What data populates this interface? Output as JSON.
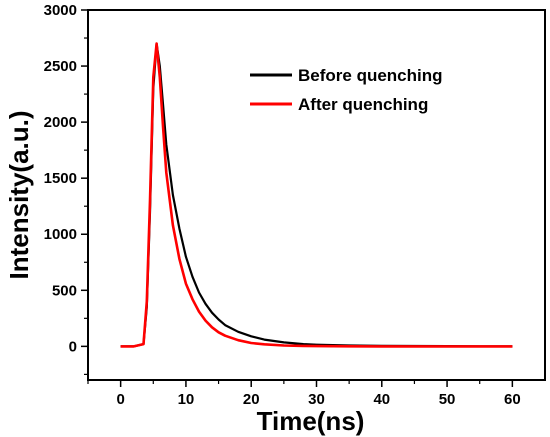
{
  "chart_data": {
    "type": "line",
    "title": "",
    "xlabel": "Time(ns)",
    "ylabel": "Intensity(a.u.)",
    "xlim": [
      -5,
      65
    ],
    "ylim": [
      -300,
      3000
    ],
    "xticks": [
      "0",
      "10",
      "20",
      "30",
      "40",
      "50",
      "60"
    ],
    "yticks": [
      "0",
      "500",
      "1000",
      "1500",
      "2000",
      "2500",
      "3000"
    ],
    "legend_position": "top-right",
    "grid": false,
    "series": [
      {
        "name": "Before quenching",
        "color": "#000000",
        "x": [
          0,
          2,
          3.5,
          4.0,
          4.5,
          5.0,
          5.5,
          6.0,
          6.5,
          7,
          8,
          9,
          10,
          11,
          12,
          13,
          14,
          15,
          16,
          18,
          20,
          22,
          25,
          28,
          30,
          35,
          40,
          45,
          50,
          55,
          60
        ],
        "values": [
          0,
          0,
          20,
          350,
          1200,
          2300,
          2700,
          2500,
          2150,
          1800,
          1350,
          1050,
          800,
          620,
          480,
          380,
          300,
          240,
          190,
          130,
          90,
          60,
          35,
          20,
          15,
          8,
          5,
          3,
          2,
          1,
          0
        ]
      },
      {
        "name": "After quenching",
        "color": "#ff0000",
        "x": [
          0,
          2,
          3.5,
          4.0,
          4.5,
          5.0,
          5.5,
          6.0,
          6.5,
          7,
          8,
          9,
          10,
          11,
          12,
          13,
          14,
          15,
          16,
          18,
          20,
          22,
          25,
          28,
          30,
          35,
          40,
          45,
          50,
          55,
          60
        ],
        "values": [
          0,
          0,
          20,
          400,
          1300,
          2400,
          2700,
          2400,
          1950,
          1550,
          1080,
          780,
          560,
          420,
          310,
          230,
          170,
          125,
          95,
          55,
          30,
          18,
          8,
          4,
          2,
          1,
          0,
          0,
          0,
          0,
          0
        ]
      }
    ]
  }
}
